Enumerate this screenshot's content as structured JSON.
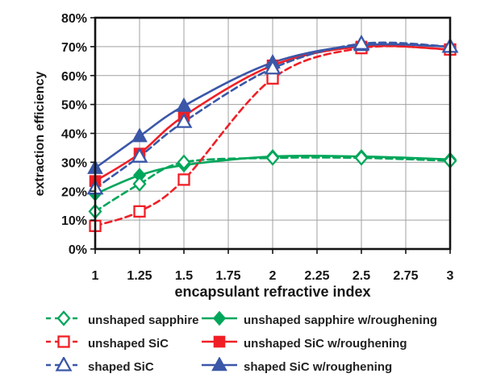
{
  "chart_data": {
    "type": "line",
    "title": "",
    "xlabel": "encapsulant refractive index",
    "ylabel": "extraction efficiency",
    "xlim": [
      1,
      3
    ],
    "ylim": [
      0,
      80
    ],
    "grid": true,
    "legend_position": "below",
    "x_tick_labels": [
      "1",
      "1.25",
      "1.5",
      "1.75",
      "2",
      "2.25",
      "2.5",
      "2.75",
      "3"
    ],
    "x_ticks": [
      1,
      1.25,
      1.5,
      1.75,
      2,
      2.25,
      2.5,
      2.75,
      3
    ],
    "y_tick_labels": [
      "0%",
      "10%",
      "20%",
      "30%",
      "40%",
      "50%",
      "60%",
      "70%",
      "80%"
    ],
    "y_ticks": [
      0,
      10,
      20,
      30,
      40,
      50,
      60,
      70,
      80
    ],
    "x": [
      1,
      1.25,
      1.5,
      2,
      2.5,
      3
    ],
    "series": [
      {
        "name": "unshaped sapphire",
        "color": "#00A65A",
        "line": "dashed",
        "marker": "diamond",
        "marker_fill": "open",
        "values": [
          13,
          22.5,
          30,
          31.5,
          31.5,
          30.5
        ]
      },
      {
        "name": "unshaped sapphire w/roughening",
        "color": "#00A65A",
        "line": "solid",
        "marker": "diamond",
        "marker_fill": "filled",
        "values": [
          19,
          25.5,
          29,
          32,
          32,
          31
        ]
      },
      {
        "name": "unshaped SiC",
        "color": "#F01F26",
        "line": "dashed",
        "marker": "square",
        "marker_fill": "open",
        "values": [
          8,
          13,
          24,
          59,
          69.5,
          69
        ]
      },
      {
        "name": "unshaped SiC w/roughening",
        "color": "#F01F26",
        "line": "solid",
        "marker": "square",
        "marker_fill": "filled",
        "values": [
          23.5,
          33,
          46,
          63.5,
          70,
          69
        ]
      },
      {
        "name": "shaped SiC",
        "color": "#3A57A8",
        "line": "dashed",
        "marker": "triangle",
        "marker_fill": "open",
        "values": [
          21,
          32,
          44,
          62.5,
          71,
          70
        ]
      },
      {
        "name": "shaped SiC w/roughening",
        "color": "#3A57A8",
        "line": "solid",
        "marker": "triangle",
        "marker_fill": "filled",
        "values": [
          28,
          39,
          49.5,
          64.5,
          70.5,
          70
        ]
      }
    ],
    "colors": {
      "green": "#00A65A",
      "red": "#F01F26",
      "blue": "#3A57A8",
      "gridline": "#a0a0a0",
      "frame": "#141414",
      "text": "#161616"
    }
  }
}
